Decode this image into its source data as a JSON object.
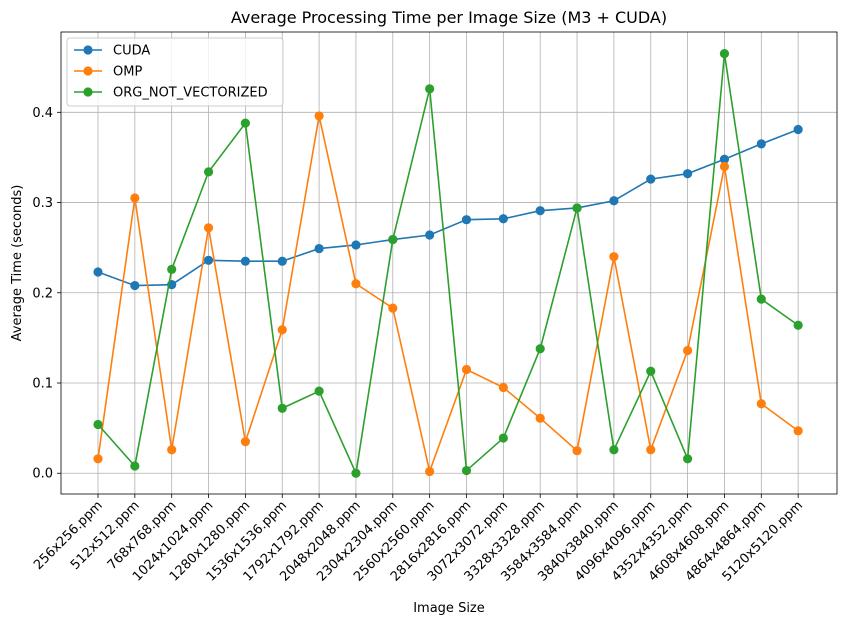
{
  "chart_data": {
    "type": "line",
    "title": "Average Processing Time per Image Size (M3 + CUDA)",
    "xlabel": "Image Size",
    "ylabel": "Average Time (seconds)",
    "categories": [
      "256x256.ppm",
      "512x512.ppm",
      "768x768.ppm",
      "1024x1024.ppm",
      "1280x1280.ppm",
      "1536x1536.ppm",
      "1792x1792.ppm",
      "2048x2048.ppm",
      "2304x2304.ppm",
      "2560x2560.ppm",
      "2816x2816.ppm",
      "3072x3072.ppm",
      "3328x3328.ppm",
      "3584x3584.ppm",
      "3840x3840.ppm",
      "4096x4096.ppm",
      "4352x4352.ppm",
      "4608x4608.ppm",
      "4864x4864.ppm",
      "5120x5120.ppm"
    ],
    "ylim": [
      -0.023,
      0.489
    ],
    "yticks": [
      0.0,
      0.1,
      0.2,
      0.3,
      0.4
    ],
    "ytick_labels": [
      "0.0",
      "0.1",
      "0.2",
      "0.3",
      "0.4"
    ],
    "grid": true,
    "legend_position": "top-left",
    "series": [
      {
        "name": "CUDA",
        "color": "#1f77b4",
        "values": [
          0.223,
          0.208,
          0.209,
          0.236,
          0.235,
          0.235,
          0.249,
          0.253,
          0.259,
          0.264,
          0.281,
          0.282,
          0.291,
          0.294,
          0.302,
          0.326,
          0.332,
          0.348,
          0.365,
          0.381
        ]
      },
      {
        "name": "OMP",
        "color": "#ff7f0e",
        "values": [
          0.016,
          0.305,
          0.026,
          0.272,
          0.035,
          0.159,
          0.396,
          0.21,
          0.183,
          0.002,
          0.115,
          0.095,
          0.061,
          0.025,
          0.24,
          0.026,
          0.136,
          0.34,
          0.077,
          0.047
        ]
      },
      {
        "name": "ORG_NOT_VECTORIZED",
        "color": "#2ca02c",
        "values": [
          0.054,
          0.008,
          0.226,
          0.334,
          0.388,
          0.072,
          0.091,
          0.0,
          0.259,
          0.426,
          0.003,
          0.039,
          0.138,
          0.294,
          0.026,
          0.113,
          0.016,
          0.465,
          0.193,
          0.164
        ]
      }
    ]
  }
}
